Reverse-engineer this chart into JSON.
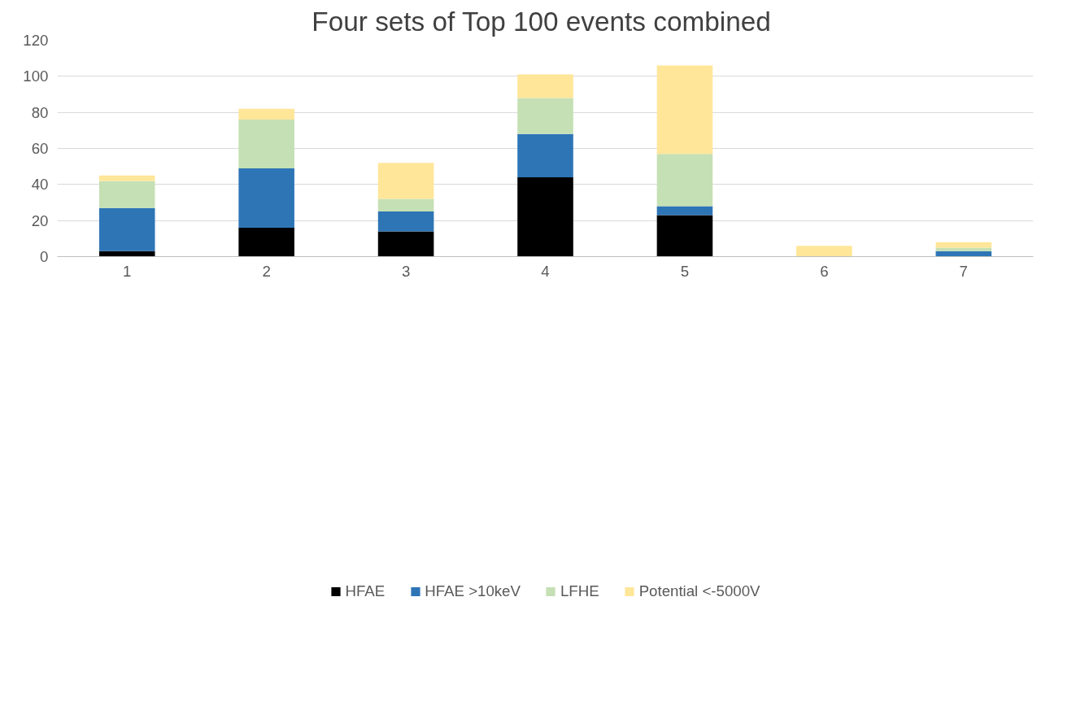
{
  "chart_data": {
    "type": "bar",
    "title": "Four sets of Top 100  events combined",
    "stacked": true,
    "categories": [
      "1",
      "2",
      "3",
      "4",
      "5",
      "6",
      "7"
    ],
    "series": [
      {
        "name": "HFAE",
        "color": "#000000",
        "values": [
          3,
          16,
          14,
          44,
          23,
          0,
          0
        ]
      },
      {
        "name": "HFAE >10keV",
        "color": "#2e75b6",
        "values": [
          24,
          33,
          11,
          24,
          5,
          0,
          3
        ]
      },
      {
        "name": "LFHE",
        "color": "#c5e0b4",
        "values": [
          15,
          27,
          7,
          20,
          29,
          0,
          2
        ]
      },
      {
        "name": "Potential <-5000V",
        "color": "#ffe699",
        "values": [
          3,
          6,
          20,
          13,
          49,
          6,
          3
        ]
      }
    ],
    "ylim": [
      0,
      120
    ],
    "yticks": [
      0,
      20,
      40,
      60,
      80,
      100,
      120
    ],
    "grid": "y",
    "legend": "bottom"
  }
}
